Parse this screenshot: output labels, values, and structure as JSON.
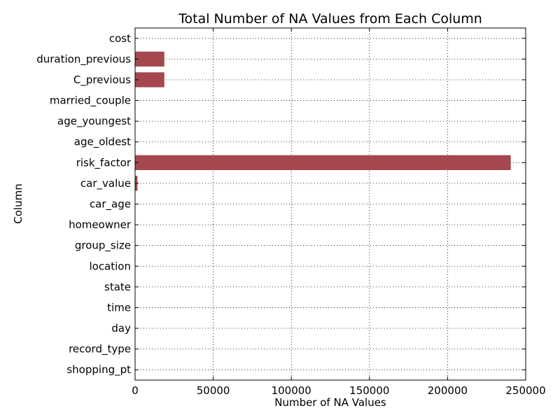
{
  "chart_data": {
    "type": "bar",
    "orientation": "horizontal",
    "title": "Total Number of NA Values from Each Column",
    "xlabel": "Number of NA Values",
    "ylabel": "Column",
    "xlim": [
      0,
      250000
    ],
    "xticks": [
      0,
      50000,
      100000,
      150000,
      200000,
      250000
    ],
    "grid": true,
    "bar_color": "#a4474f",
    "categories": [
      "shopping_pt",
      "record_type",
      "day",
      "time",
      "state",
      "location",
      "group_size",
      "homeowner",
      "car_age",
      "car_value",
      "risk_factor",
      "age_oldest",
      "age_youngest",
      "married_couple",
      "C_previous",
      "duration_previous",
      "cost"
    ],
    "values": [
      0,
      0,
      0,
      0,
      0,
      0,
      0,
      0,
      0,
      1531,
      240418,
      0,
      0,
      0,
      18711,
      18711,
      0
    ]
  }
}
